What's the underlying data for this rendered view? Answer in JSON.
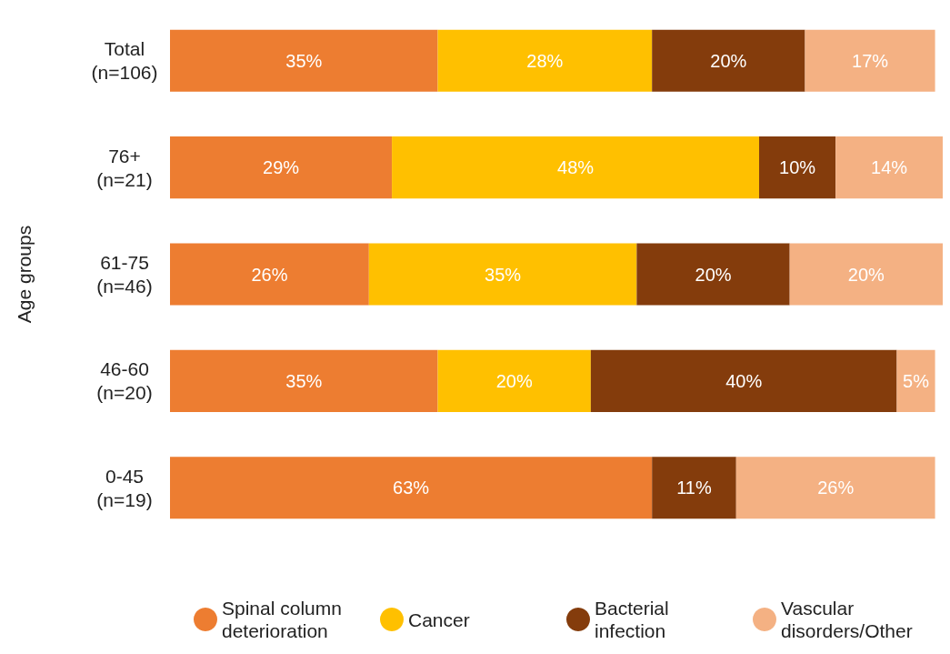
{
  "chart_data": {
    "type": "bar",
    "orientation": "horizontal",
    "stacked": true,
    "ylabel": "Age groups",
    "categories": [
      "Total\n(n=106)",
      "76+\n(n=21)",
      "61-75\n(n=46)",
      "46-60\n(n=20)",
      "0-45\n(n=19)"
    ],
    "tick_labels": "y",
    "legend": "bottom",
    "series": [
      {
        "name": "Spinal column deterioration",
        "color": "#ed7d31",
        "values": [
          35,
          29,
          26,
          35,
          63
        ],
        "value_labels": [
          "35%",
          "29%",
          "26%",
          "35%",
          "63%"
        ]
      },
      {
        "name": "Cancer",
        "color": "#ffc000",
        "values": [
          28,
          48,
          35,
          20,
          null
        ],
        "value_labels": [
          "28%",
          "48%",
          "35%",
          "20%",
          null
        ]
      },
      {
        "name": "Bacterial infection",
        "color": "#843c0c",
        "values": [
          20,
          10,
          20,
          40,
          11
        ],
        "value_labels": [
          "20%",
          "10%",
          "20%",
          "40%",
          "11%"
        ]
      },
      {
        "name": "Vascular disorders/Other",
        "color": "#f4b183",
        "values": [
          17,
          14,
          20,
          5,
          26
        ],
        "value_labels": [
          "17%",
          "14%",
          "20%",
          "5%",
          "26%"
        ]
      }
    ]
  }
}
